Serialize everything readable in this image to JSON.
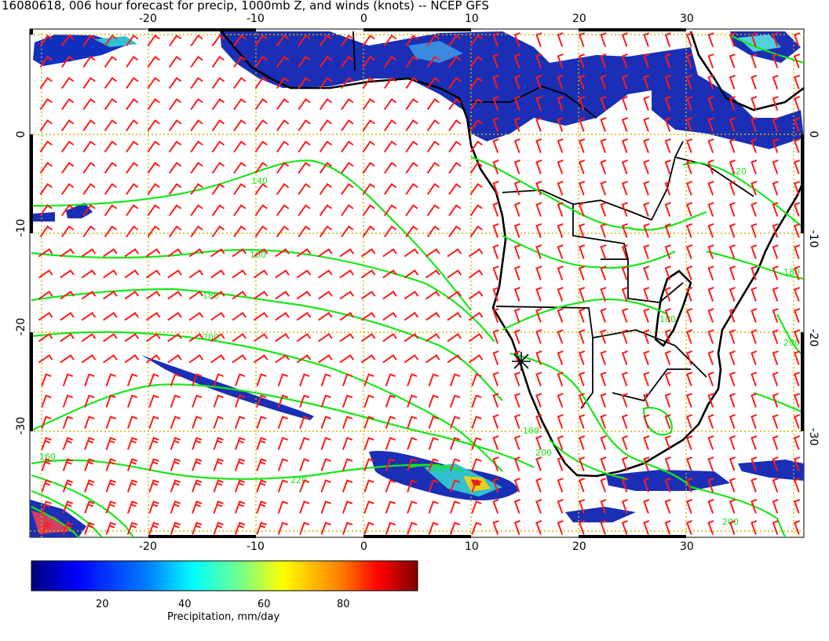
{
  "title": "16080618, 006 hour forecast for precip, 1000mb Z, and winds (knots) -- NCEP GFS",
  "map": {
    "lon_range": [
      -31,
      41
    ],
    "lat_range": [
      -40,
      10
    ],
    "lon_ticks": [
      "-20",
      "-10",
      "0",
      "10",
      "20",
      "30"
    ],
    "lat_ticks": [
      "0",
      "-10",
      "-20",
      "-30"
    ],
    "gridline_color": "#d7b400",
    "coast_color": "#000000",
    "contour_color": "#19e619",
    "barb_color": "#ff1a1a",
    "marker_label": "star marker near 14.5E 23S"
  },
  "contour_labels": [
    "140",
    "160",
    "180",
    "200",
    "220",
    "200",
    "200",
    "180",
    "160",
    "120",
    "200",
    "180",
    "200",
    "180"
  ],
  "colorbar": {
    "ticks": [
      "20",
      "40",
      "60",
      "80"
    ],
    "label": "Precipitation, mm/day",
    "range": [
      0,
      100
    ],
    "colors": [
      "#00007f",
      "#0000ff",
      "#007fff",
      "#00ffff",
      "#7fff7f",
      "#ffff00",
      "#ff7f00",
      "#ff0000",
      "#7f0000"
    ]
  }
}
